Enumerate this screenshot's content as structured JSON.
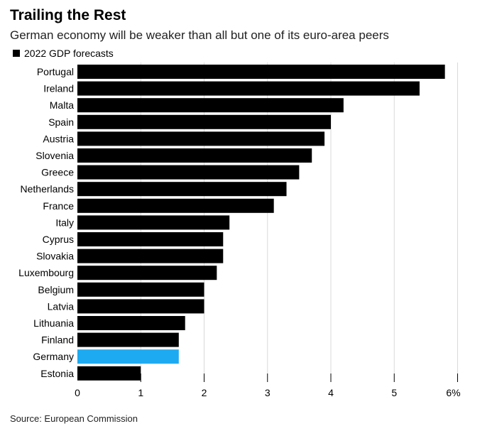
{
  "title": "Trailing the Rest",
  "subtitle": "German economy will be weaker than all but one of its euro-area peers",
  "source": "Source: European Commission",
  "colors": {
    "default_bar": "#000000",
    "highlight_bar": "#1eaaf1",
    "gridline": "#d9d9d9"
  },
  "chart_data": {
    "type": "bar",
    "orientation": "horizontal",
    "series": [
      {
        "name": "2022 GDP forecasts"
      }
    ],
    "categories": [
      "Portugal",
      "Ireland",
      "Malta",
      "Spain",
      "Austria",
      "Slovenia",
      "Greece",
      "Netherlands",
      "France",
      "Italy",
      "Cyprus",
      "Slovakia",
      "Luxembourg",
      "Belgium",
      "Latvia",
      "Lithuania",
      "Finland",
      "Germany",
      "Estonia"
    ],
    "values": [
      5.8,
      5.4,
      4.2,
      4.0,
      3.9,
      3.7,
      3.5,
      3.3,
      3.1,
      2.4,
      2.3,
      2.3,
      2.2,
      2.0,
      2.0,
      1.7,
      1.6,
      1.6,
      1.0
    ],
    "highlight": "Germany",
    "xlim": [
      0,
      6
    ],
    "xticks": [
      0,
      1,
      2,
      3,
      4,
      5,
      6
    ],
    "xtick_labels": [
      "0",
      "1",
      "2",
      "3",
      "4",
      "5",
      "6%"
    ],
    "grid": true,
    "legend_position": "top-left"
  }
}
